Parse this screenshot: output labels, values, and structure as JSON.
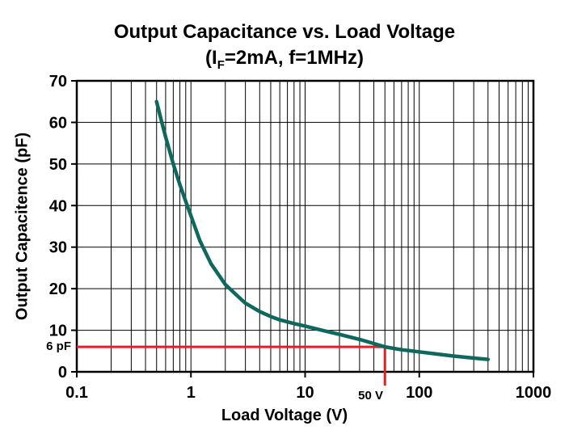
{
  "title": {
    "line1": "Output Capacitance vs. Load Voltage",
    "line2_prefix": "(I",
    "line2_sub": "F",
    "line2_suffix": "=2mA, f=1MHz)"
  },
  "chart_data": {
    "type": "line",
    "title": "Output Capacitance vs. Load Voltage (IF=2mA, f=1MHz)",
    "xlabel": "Load Voltage (V)",
    "ylabel": "Output Capacitence (pF)",
    "xscale": "log",
    "xlim": [
      0.1,
      1000
    ],
    "ylim": [
      0,
      70
    ],
    "x_ticks": [
      {
        "v": 0.1,
        "label": "0.1"
      },
      {
        "v": 1,
        "label": "1"
      },
      {
        "v": 10,
        "label": "10"
      },
      {
        "v": 100,
        "label": "100"
      },
      {
        "v": 1000,
        "label": "1000"
      }
    ],
    "y_ticks": [
      {
        "v": 0,
        "label": "0"
      },
      {
        "v": 10,
        "label": "10"
      },
      {
        "v": 20,
        "label": "20"
      },
      {
        "v": 30,
        "label": "30"
      },
      {
        "v": 40,
        "label": "40"
      },
      {
        "v": 50,
        "label": "50"
      },
      {
        "v": 60,
        "label": "60"
      },
      {
        "v": 70,
        "label": "70"
      }
    ],
    "grid": {
      "x_minor_log": true,
      "y_step": 10,
      "color": "#000000"
    },
    "series": [
      {
        "name": "output-capacitance-curve",
        "color": "#0f685e",
        "points": [
          [
            0.5,
            65
          ],
          [
            0.55,
            60.5
          ],
          [
            0.6,
            56.5
          ],
          [
            0.7,
            50
          ],
          [
            0.8,
            45
          ],
          [
            0.9,
            41
          ],
          [
            1,
            37.5
          ],
          [
            1.2,
            31.5
          ],
          [
            1.5,
            26
          ],
          [
            2,
            21
          ],
          [
            2.5,
            18.5
          ],
          [
            3,
            16.5
          ],
          [
            4,
            14.5
          ],
          [
            5,
            13.3
          ],
          [
            6,
            12.5
          ],
          [
            8,
            11.6
          ],
          [
            10,
            11
          ],
          [
            15,
            9.8
          ],
          [
            20,
            9
          ],
          [
            30,
            7.8
          ],
          [
            40,
            6.8
          ],
          [
            50,
            6
          ],
          [
            70,
            5.3
          ],
          [
            100,
            4.8
          ],
          [
            150,
            4.2
          ],
          [
            200,
            3.8
          ],
          [
            300,
            3.3
          ],
          [
            400,
            3
          ]
        ]
      }
    ],
    "annotations": {
      "color": "#e31e24",
      "h_line": {
        "y": 6,
        "label": "6 pF"
      },
      "v_line": {
        "x": 50,
        "label": "50 V"
      }
    }
  }
}
